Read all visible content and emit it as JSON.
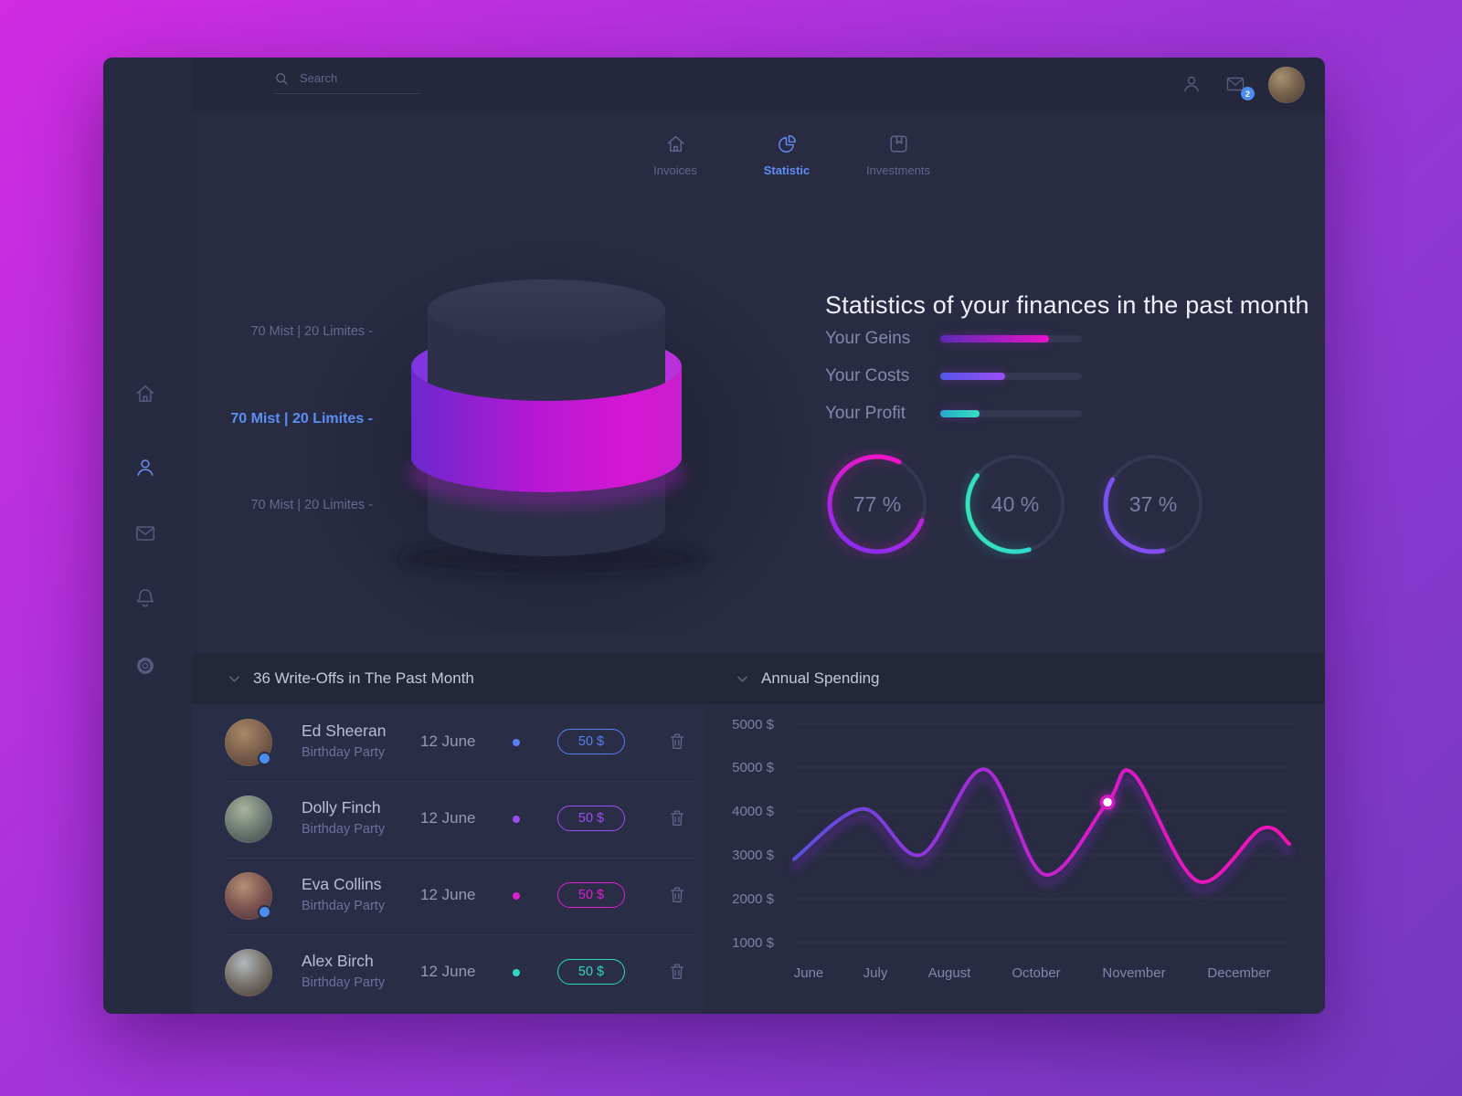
{
  "topbar": {
    "search_placeholder": "Search",
    "mail_badge": "2"
  },
  "sidebar": {
    "items": [
      {
        "icon": "home"
      },
      {
        "icon": "user",
        "active": true
      },
      {
        "icon": "mail"
      },
      {
        "icon": "bell"
      },
      {
        "icon": "settings"
      }
    ]
  },
  "tabs": [
    {
      "label": "Invoices",
      "icon": "home"
    },
    {
      "label": "Statistic",
      "icon": "pie-chart",
      "active": true
    },
    {
      "label": "Investments",
      "icon": "bookmark"
    }
  ],
  "donut": {
    "labels": [
      {
        "text": "70 Mist | 20 Limites -",
        "active": false
      },
      {
        "text": "70 Mist | 20 Limites -",
        "active": true
      },
      {
        "text": "70 Mist | 20 Limites -",
        "active": false
      }
    ]
  },
  "stats": {
    "title": "Statistics of your finances in the past month",
    "bars": [
      {
        "label": "Your Geins",
        "percent": 77,
        "color_start": "#5b2bb8",
        "color_end": "#e812c8"
      },
      {
        "label": "Your Costs",
        "percent": 46,
        "color_start": "#5356ea",
        "color_end": "#9d4cf2"
      },
      {
        "label": "Your Profit",
        "percent": 28,
        "color_start": "#23a8cc",
        "color_end": "#38e0c0"
      }
    ],
    "rings": [
      {
        "value": "77 %",
        "percent": 77
      },
      {
        "value": "40 %",
        "percent": 40
      },
      {
        "value": "37 %",
        "percent": 37
      }
    ]
  },
  "writeoffs": {
    "title": "36 Write-Offs in The Past Month",
    "rows": [
      {
        "name": "Ed Sheeran",
        "subtitle": "Birthday Party",
        "date": "12 June",
        "amount": "50 $",
        "color": "#5b7ef2",
        "has_badge": true
      },
      {
        "name": "Dolly Finch",
        "subtitle": "Birthday Party",
        "date": "12 June",
        "amount": "50 $",
        "color": "#9b4ff2",
        "has_badge": false
      },
      {
        "name": "Eva Collins",
        "subtitle": "Birthday Party",
        "date": "12 June",
        "amount": "50 $",
        "color": "#dd1fd0",
        "has_badge": true
      },
      {
        "name": "Alex Birch",
        "subtitle": "Birthday Party",
        "date": "12 June",
        "amount": "50 $",
        "color": "#2ed8c4",
        "has_badge": false
      }
    ]
  },
  "annual": {
    "title": "Annual Spending"
  },
  "chart_data": {
    "type": "line",
    "title": "Annual Spending",
    "x_labels": [
      "June",
      "July",
      "August",
      "October",
      "November",
      "December"
    ],
    "y_tick_labels": [
      "5000 $",
      "5000 $",
      "4000 $",
      "3000 $",
      "2000 $",
      "1000 $"
    ],
    "y_axis_range": [
      1000,
      5000
    ],
    "grid": true,
    "points": [
      [
        0,
        2900
      ],
      [
        0.139,
        4050
      ],
      [
        0.256,
        3000
      ],
      [
        0.385,
        4950
      ],
      [
        0.506,
        2550
      ],
      [
        0.633,
        4200
      ],
      [
        0.685,
        4850
      ],
      [
        0.815,
        2400
      ],
      [
        0.944,
        3600
      ],
      [
        1,
        3250
      ]
    ],
    "points_note": "x = fraction across plot width, y = dollars",
    "marker_index": 5,
    "line_gradient": [
      "#5a50e0",
      "#9632d8",
      "#d61cc8",
      "#f312b4"
    ]
  }
}
